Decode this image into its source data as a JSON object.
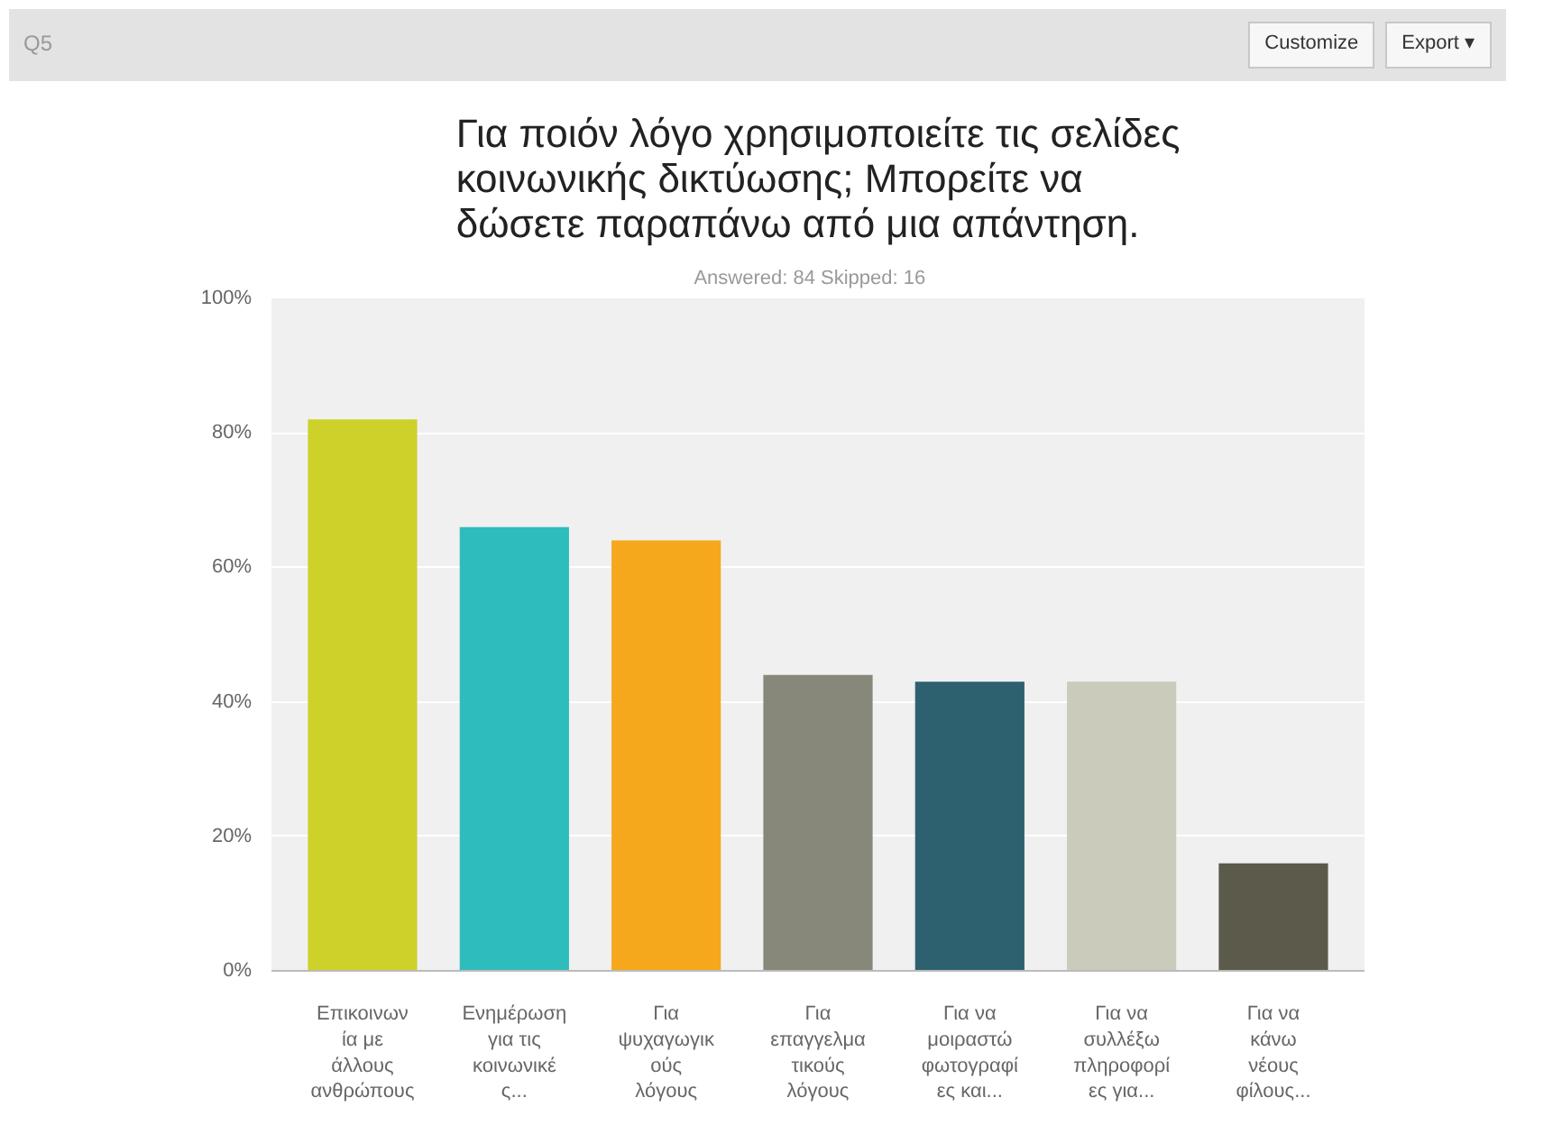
{
  "chart_data": {
    "type": "bar",
    "title": "Για ποιόν λόγο χρησιμοποιείτε τις σελίδες\nκοινωνικής δικτύωσης; Μπορείτε να\nδώσετε παραπάνω από μια απάντηση.",
    "subtitle": "Answered: 84    Skipped: 16",
    "annotations": [
      "Q5",
      "Customize",
      "Export ▾"
    ],
    "categories": [
      "Επικοινων\nία με\nάλλους\nανθρώπους",
      "Ενημέρωση\nγια τις\nκοινωνικέ\nς...",
      "Για\nψυχαγωγικ\nούς\nλόγους",
      "Για\nεπαγγελμα\nτικούς\nλόγους",
      "Για να\nμοιραστώ\nφωτογραφί\nες και...",
      "Για να\nσυλλέξω\nπληροφορί\nες για...",
      "Για να\nκάνω\nνέους\nφίλους..."
    ],
    "values": [
      82,
      66,
      64,
      44,
      43,
      43,
      16
    ],
    "colors": [
      "#cdd12a",
      "#2fbcbc",
      "#f5a81c",
      "#87877a",
      "#2d6170",
      "#cbcbbb",
      "#5b5a4b"
    ],
    "ylim": [
      0,
      100
    ],
    "yticks": [
      {
        "value": 0,
        "label": "0%"
      },
      {
        "value": 20,
        "label": "20%"
      },
      {
        "value": 40,
        "label": "40%"
      },
      {
        "value": 60,
        "label": "60%"
      },
      {
        "value": 80,
        "label": "80%"
      },
      {
        "value": 100,
        "label": "100%"
      }
    ],
    "grid": "y"
  }
}
